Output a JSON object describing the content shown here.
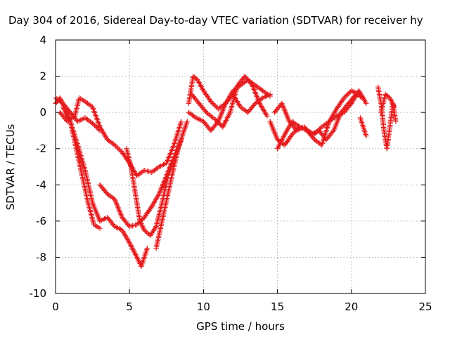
{
  "chart_data": {
    "type": "scatter",
    "title": "Day 304 of 2016, Sidereal Day-to-day VTEC variation (SDTVAR) for receiver hy",
    "xlabel": "GPS time / hours",
    "ylabel": "SDTVAR / TECUs",
    "xlim": [
      0,
      25
    ],
    "ylim": [
      -10,
      4
    ],
    "xticks": [
      0,
      5,
      10,
      15,
      20,
      25
    ],
    "yticks": [
      -10,
      -8,
      -6,
      -4,
      -2,
      0,
      2,
      4
    ],
    "grid": true,
    "legend": "none",
    "marker": "plus",
    "color": "#e41a1c",
    "series": [
      {
        "x": [
          0,
          0.3,
          0.6,
          1.0,
          1.4,
          1.8,
          2.2,
          2.6,
          3.0
        ],
        "y": [
          0.5,
          0.8,
          0.3,
          -0.5,
          -2.0,
          -3.5,
          -5.0,
          -6.2,
          -6.4
        ]
      },
      {
        "x": [
          0,
          0.5,
          1.0,
          1.5,
          2.0,
          2.5,
          3.0
        ],
        "y": [
          0.8,
          0.5,
          0,
          -0.5,
          -0.3,
          -0.6,
          -1.0
        ]
      },
      {
        "x": [
          0.3,
          0.8,
          1.3,
          1.6,
          2.0,
          2.5,
          3.0,
          3.5,
          4.0,
          4.5,
          5.0,
          5.5,
          6.0,
          6.5,
          7.0,
          7.5,
          8.0,
          8.5
        ],
        "y": [
          0,
          -0.5,
          -0.2,
          0.8,
          0.6,
          0.3,
          -0.8,
          -1.5,
          -1.8,
          -2.2,
          -2.8,
          -3.5,
          -3.2,
          -3.3,
          -3.0,
          -2.8,
          -1.8,
          -0.5
        ]
      },
      {
        "x": [
          0.5,
          1.0,
          1.5,
          2.0,
          2.5,
          3.0,
          3.5,
          4.0,
          4.5,
          5.0,
          5.5,
          5.8,
          6.2
        ],
        "y": [
          0.3,
          -0.5,
          -1.8,
          -3.2,
          -5.0,
          -6.0,
          -5.8,
          -6.3,
          -6.5,
          -7.2,
          -8.0,
          -8.5,
          -7.5
        ]
      },
      {
        "x": [
          3.0,
          3.5,
          4.0,
          4.5,
          5.0,
          5.5,
          6.0,
          6.5,
          7.0,
          7.5,
          8.0,
          8.5
        ],
        "y": [
          -4.0,
          -4.5,
          -4.8,
          -5.8,
          -6.3,
          -6.2,
          -5.8,
          -5.2,
          -4.5,
          -3.5,
          -2.5,
          -1.5
        ]
      },
      {
        "x": [
          4.8,
          5.1,
          5.4,
          5.7,
          6.0,
          6.4,
          6.8,
          7.2,
          7.6,
          8.0
        ],
        "y": [
          -2.0,
          -3.0,
          -4.5,
          -6.0,
          -6.5,
          -6.8,
          -6.3,
          -5.0,
          -3.5,
          -2.5
        ]
      },
      {
        "x": [
          6.8,
          7.2,
          7.6,
          8.0,
          8.3,
          8.6,
          8.9
        ],
        "y": [
          -7.5,
          -6.0,
          -4.5,
          -3.0,
          -2.0,
          -1.2,
          -0.5
        ]
      },
      {
        "x": [
          9.0,
          9.3,
          9.6,
          10.0,
          10.5,
          11.0,
          11.5,
          12.0,
          12.5,
          13.0,
          13.5,
          14.0,
          14.5
        ],
        "y": [
          0.5,
          2.0,
          1.8,
          1.2,
          0.6,
          0.2,
          0.5,
          1.2,
          1.5,
          1.8,
          1.5,
          1.2,
          0.9
        ]
      },
      {
        "x": [
          9.0,
          9.5,
          10.0,
          10.5,
          11.0,
          11.5,
          12.0,
          12.5,
          13.0,
          13.5,
          14.0,
          14.5
        ],
        "y": [
          0,
          -0.3,
          -0.5,
          -1.0,
          -0.5,
          0.5,
          1.0,
          0.3,
          0,
          0.5,
          0.8,
          1.0
        ]
      },
      {
        "x": [
          9.2,
          9.7,
          10.2,
          10.8,
          11.3,
          11.8,
          12.3,
          12.8,
          13.3,
          13.8,
          14.3
        ],
        "y": [
          1.0,
          0.5,
          0,
          -0.4,
          -0.8,
          0,
          1.5,
          2.0,
          1.5,
          0.5,
          -0.2
        ]
      },
      {
        "x": [
          14.5,
          15.0,
          15.5,
          16.0,
          16.5,
          17.0,
          17.5,
          18.0,
          18.5,
          19.0,
          19.5,
          20.0,
          20.5,
          21.0
        ],
        "y": [
          -0.5,
          -1.5,
          -1.8,
          -1.2,
          -0.8,
          -1.0,
          -1.2,
          -0.8,
          -0.5,
          -0.2,
          0,
          0.5,
          1.2,
          0.5
        ]
      },
      {
        "x": [
          14.8,
          15.3,
          15.8,
          16.3,
          16.8,
          17.3,
          17.8,
          18.3,
          18.8,
          19.3,
          19.8,
          20.3,
          20.8
        ],
        "y": [
          0,
          0.5,
          -0.5,
          -1.0,
          -0.8,
          -1.2,
          -1.0,
          -1.5,
          -1.0,
          0,
          0.5,
          1.0,
          0.8
        ]
      },
      {
        "x": [
          15.0,
          15.5,
          16.0,
          16.5,
          17.0,
          17.5,
          18.0,
          18.5,
          19.0,
          19.5,
          20.0,
          20.5
        ],
        "y": [
          -2.0,
          -1.2,
          -0.5,
          -0.8,
          -1.0,
          -1.5,
          -1.8,
          -0.5,
          0.2,
          0.8,
          1.2,
          1.0
        ]
      },
      {
        "x": [
          20.6,
          20.8,
          21.0
        ],
        "y": [
          -0.3,
          -0.8,
          -1.3
        ]
      },
      {
        "x": [
          21.8,
          22.0,
          22.2,
          22.4,
          22.6,
          22.8,
          23.0
        ],
        "y": [
          1.4,
          0.5,
          -1.0,
          -2.0,
          -0.8,
          0.5,
          -0.5
        ]
      },
      {
        "x": [
          22.0,
          22.3,
          22.6,
          22.9
        ],
        "y": [
          0,
          1.0,
          0.8,
          0.3
        ]
      }
    ]
  }
}
